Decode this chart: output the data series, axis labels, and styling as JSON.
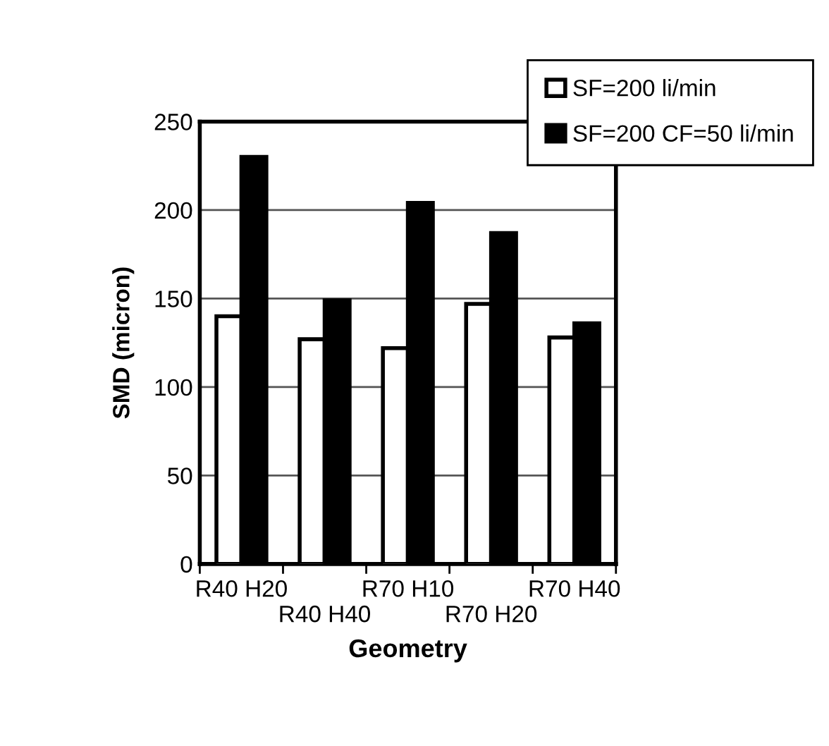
{
  "chart_data": {
    "type": "bar",
    "xlabel": "Geometry",
    "ylabel": "SMD (micron)",
    "categories": [
      "R40 H20",
      "R40 H40",
      "R70 H10",
      "R70 H20",
      "R70 H40"
    ],
    "series": [
      {
        "name": "SF=200 li/min",
        "color": "#ffffff",
        "values": [
          140,
          127,
          122,
          147,
          128
        ]
      },
      {
        "name": "SF=200 CF=50 li/min",
        "color": "#000000",
        "values": [
          230,
          149,
          204,
          187,
          136
        ]
      }
    ],
    "ylim": [
      0,
      250
    ],
    "yticks": [
      0,
      50,
      100,
      150,
      200,
      250
    ],
    "grid": "y",
    "legend": "top right"
  }
}
